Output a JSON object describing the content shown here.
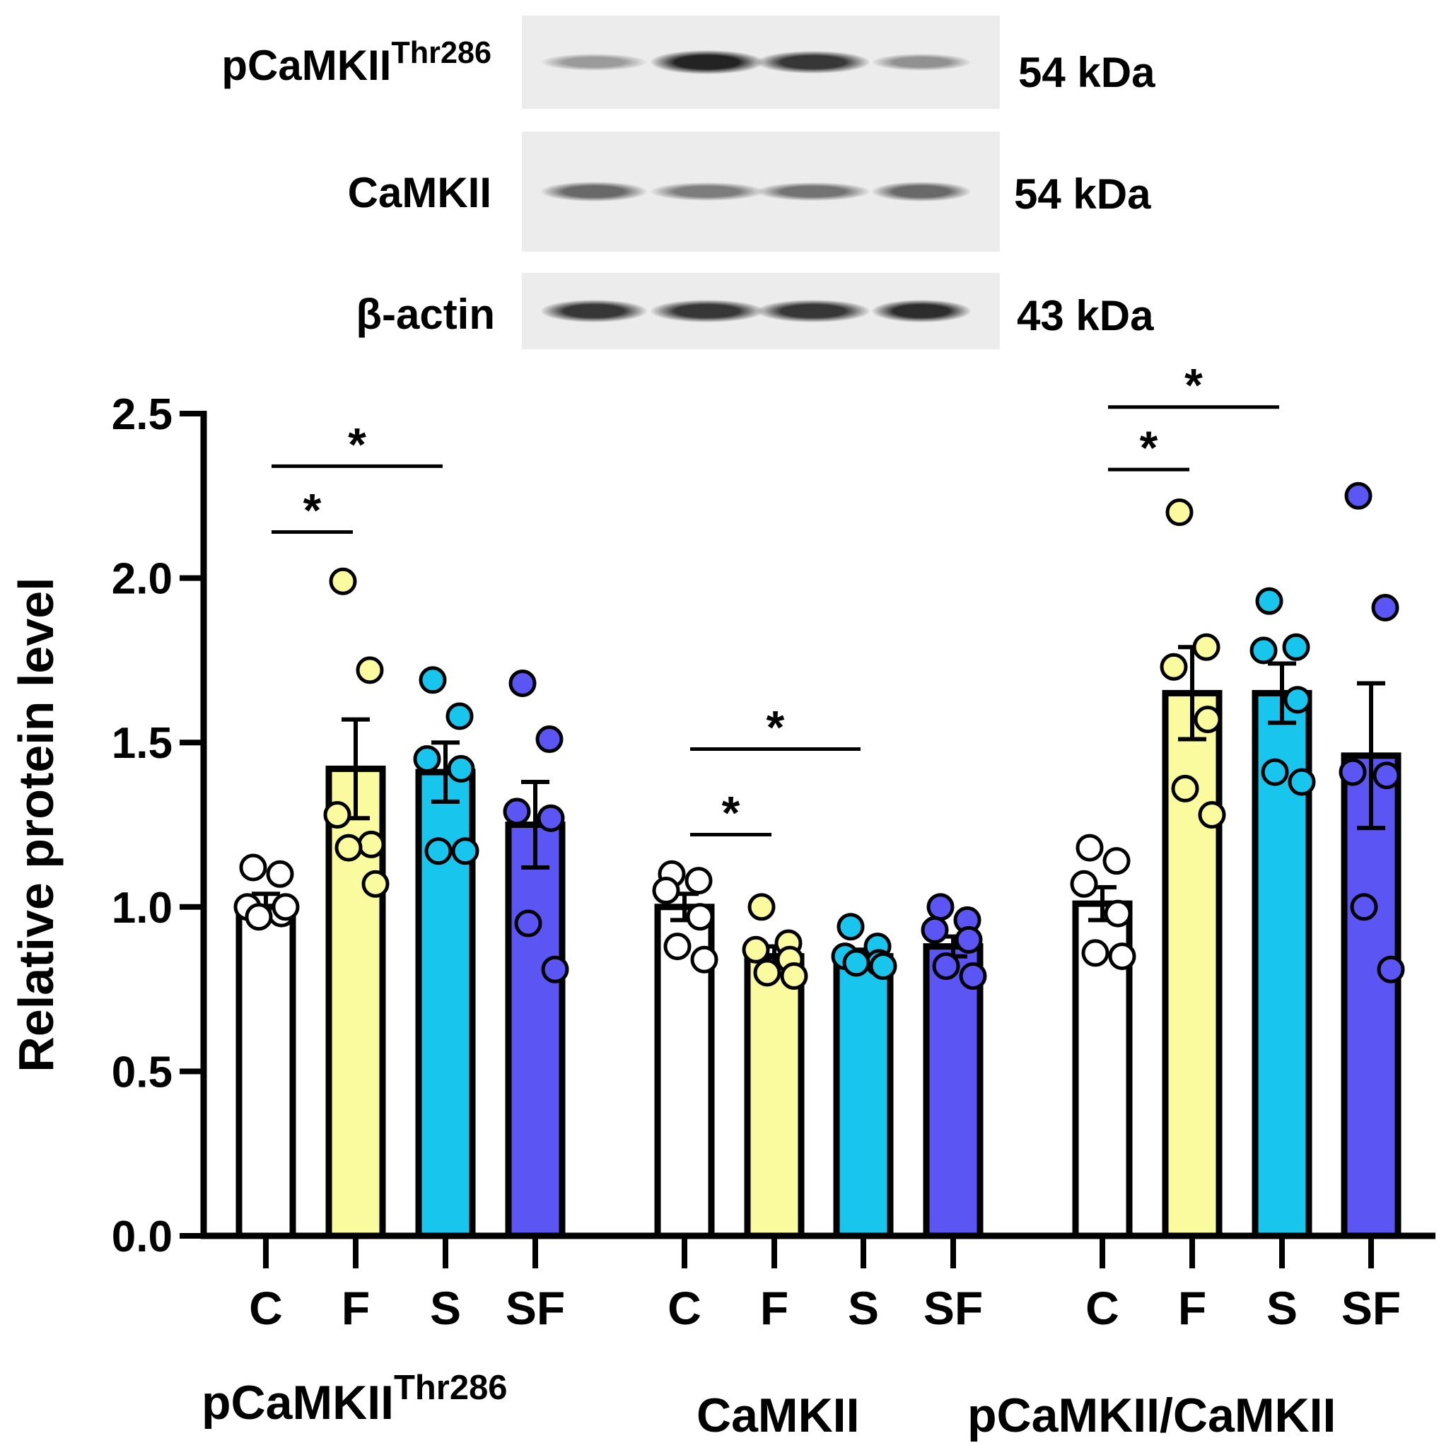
{
  "blot": {
    "rows": [
      {
        "label": "pCaMKII",
        "label_sup": "Thr286",
        "kda": "54 kDa",
        "intensity": [
          0.35,
          0.95,
          0.85,
          0.4
        ]
      },
      {
        "label": "CaMKII",
        "label_sup": "",
        "kda": "54 kDa",
        "intensity": [
          0.6,
          0.5,
          0.55,
          0.6
        ]
      },
      {
        "label": "β-actin",
        "label_sup": "",
        "kda": "43 kDa",
        "intensity": [
          0.85,
          0.85,
          0.85,
          0.9
        ]
      }
    ]
  },
  "chart_data": {
    "type": "bar",
    "ylabel": "Relative protein level",
    "ylim": [
      0,
      2.5
    ],
    "yticks": [
      "0.0",
      "0.5",
      "1.0",
      "1.5",
      "2.0",
      "2.5"
    ],
    "categories": [
      "C",
      "F",
      "S",
      "SF"
    ],
    "colors": {
      "C": "#ffffff",
      "F": "#fafa9e",
      "S": "#18c6ed",
      "SF": "#5b55f3"
    },
    "groups": [
      {
        "name": "pCaMKII",
        "name_sup": "Thr286",
        "bars": [
          {
            "cat": "C",
            "mean": 1.0,
            "sem": 0.04,
            "points": [
              1.12,
              1.1,
              1.0,
              0.98,
              0.97,
              1.0
            ]
          },
          {
            "cat": "F",
            "mean": 1.42,
            "sem": 0.15,
            "points": [
              1.99,
              1.72,
              1.28,
              1.19,
              1.18,
              1.07
            ]
          },
          {
            "cat": "S",
            "mean": 1.41,
            "sem": 0.09,
            "points": [
              1.69,
              1.58,
              1.45,
              1.42,
              1.17,
              1.17
            ]
          },
          {
            "cat": "SF",
            "mean": 1.25,
            "sem": 0.13,
            "points": [
              1.68,
              1.51,
              1.29,
              1.27,
              0.95,
              0.81
            ]
          }
        ],
        "significance": [
          {
            "from": "C",
            "to": "F",
            "label": "*",
            "y": 2.14
          },
          {
            "from": "C",
            "to": "S",
            "label": "*",
            "y": 2.34
          }
        ]
      },
      {
        "name": "CaMKII",
        "name_sup": "",
        "bars": [
          {
            "cat": "C",
            "mean": 1.0,
            "sem": 0.04,
            "points": [
              1.1,
              1.08,
              1.05,
              0.97,
              0.88,
              0.84
            ]
          },
          {
            "cat": "F",
            "mean": 0.85,
            "sem": 0.03,
            "points": [
              1.0,
              0.89,
              0.87,
              0.84,
              0.8,
              0.79
            ]
          },
          {
            "cat": "S",
            "mean": 0.85,
            "sem": 0.02,
            "points": [
              0.94,
              0.88,
              0.85,
              0.83,
              0.83,
              0.82
            ]
          },
          {
            "cat": "SF",
            "mean": 0.88,
            "sem": 0.03,
            "points": [
              1.0,
              0.96,
              0.93,
              0.9,
              0.82,
              0.79
            ]
          }
        ],
        "significance": [
          {
            "from": "C",
            "to": "F",
            "label": "*",
            "y": 1.22
          },
          {
            "from": "C",
            "to": "S",
            "label": "*",
            "y": 1.48
          }
        ]
      },
      {
        "name": "pCaMKII/CaMKII",
        "name_sup": "",
        "bars": [
          {
            "cat": "C",
            "mean": 1.01,
            "sem": 0.05,
            "points": [
              1.18,
              1.14,
              1.07,
              0.98,
              0.86,
              0.85
            ]
          },
          {
            "cat": "F",
            "mean": 1.65,
            "sem": 0.14,
            "points": [
              2.2,
              1.79,
              1.73,
              1.57,
              1.36,
              1.28
            ]
          },
          {
            "cat": "S",
            "mean": 1.65,
            "sem": 0.09,
            "points": [
              1.93,
              1.79,
              1.78,
              1.63,
              1.41,
              1.38
            ]
          },
          {
            "cat": "SF",
            "mean": 1.46,
            "sem": 0.22,
            "points": [
              2.25,
              1.91,
              1.41,
              1.4,
              1.0,
              0.81
            ]
          }
        ],
        "significance": [
          {
            "from": "C",
            "to": "F",
            "label": "*",
            "y": 2.33
          },
          {
            "from": "C",
            "to": "S",
            "label": "*",
            "y": 2.52
          }
        ]
      }
    ]
  }
}
